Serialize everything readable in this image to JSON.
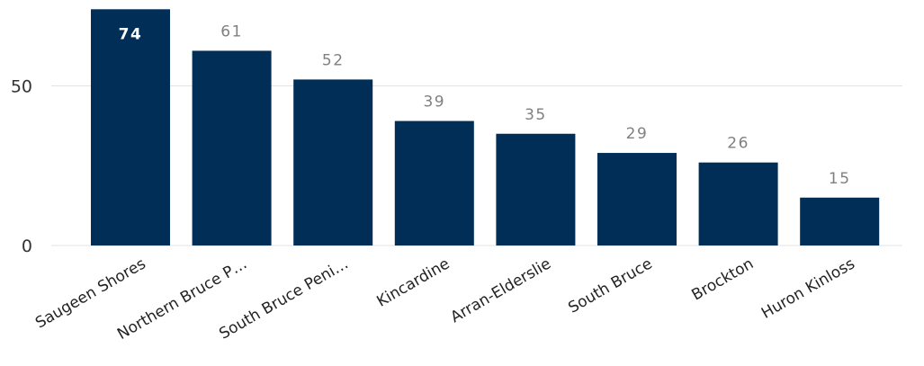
{
  "chart_data": {
    "type": "bar",
    "categories": [
      "Saugeen Shores",
      "Northern Bruce P…",
      "South Bruce Peni…",
      "Kincardine",
      "Arran-Elderslie",
      "South Bruce",
      "Brockton",
      "Huron Kinloss"
    ],
    "values": [
      74,
      61,
      52,
      39,
      35,
      29,
      26,
      15
    ],
    "data_labels": [
      "74",
      "61",
      "52",
      "39",
      "35",
      "29",
      "26",
      "15"
    ],
    "y_ticks": [
      0,
      50
    ],
    "y_tick_labels": [
      "0",
      "50"
    ],
    "ylim": [
      0,
      74
    ],
    "grid": true,
    "legend": "none",
    "colors": {
      "bar": "#002e57",
      "grid": "#e3e3e3",
      "label_outside": "#808080",
      "label_inside": "#ffffff"
    }
  }
}
